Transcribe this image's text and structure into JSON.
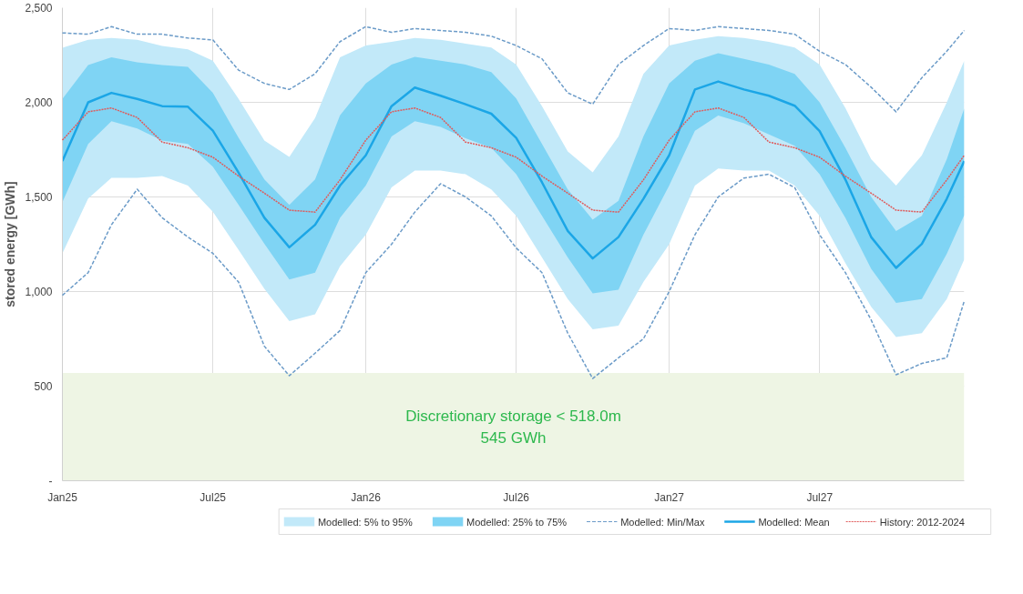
{
  "chart_data": {
    "type": "line",
    "ylabel": "stored energy [GWh]",
    "x": [
      "2025-01-01",
      "2025-02-01",
      "2025-03-01",
      "2025-04-01",
      "2025-05-01",
      "2025-06-01",
      "2025-07-01",
      "2025-08-01",
      "2025-09-01",
      "2025-10-01",
      "2025-11-01",
      "2025-12-01",
      "2026-01-01",
      "2026-02-01",
      "2026-03-01",
      "2026-04-01",
      "2026-05-01",
      "2026-06-01",
      "2026-07-01",
      "2026-08-01",
      "2026-09-01",
      "2026-10-01",
      "2026-11-01",
      "2026-12-01",
      "2027-01-01",
      "2027-02-01",
      "2027-03-01",
      "2027-04-01",
      "2027-05-01",
      "2027-06-01",
      "2027-07-01",
      "2027-08-01",
      "2027-09-01",
      "2027-10-01",
      "2027-11-01",
      "2027-12-01",
      "2027-12-22"
    ],
    "xlim": [
      "2025-01-01",
      "2027-12-22"
    ],
    "xticks": [
      {
        "value": "2025-01-01",
        "label": "Jan25"
      },
      {
        "value": "2025-07-01",
        "label": "Jul25"
      },
      {
        "value": "2026-01-01",
        "label": "Jan26"
      },
      {
        "value": "2026-07-01",
        "label": "Jul26"
      },
      {
        "value": "2027-01-01",
        "label": "Jan27"
      },
      {
        "value": "2027-07-01",
        "label": "Jul27"
      }
    ],
    "ylim": [
      0,
      2500
    ],
    "yticks": [
      {
        "value": 0,
        "label": "-"
      },
      500,
      {
        "value": 1000,
        "label": "1,000"
      },
      {
        "value": 1500,
        "label": "1,500"
      },
      {
        "value": 2000,
        "label": "2,000"
      },
      {
        "value": 2500,
        "label": "2,500"
      }
    ],
    "grid": true,
    "legend": "bottom",
    "bands": [
      {
        "axis": "y",
        "from": 0,
        "to": 570,
        "color": "#eef5e4",
        "label": "Discretionary storage < 518.0m\n545 GWh"
      }
    ],
    "series": [
      {
        "name": "Modelled: 5% to 95%",
        "type": "area",
        "color": "#c2e9f9",
        "values": [
          null,
          null,
          null,
          null,
          null,
          null,
          null,
          null,
          null,
          null,
          null,
          null,
          null,
          null,
          null,
          null,
          null,
          null,
          null,
          null,
          null,
          null,
          null,
          null,
          null,
          null,
          null,
          null,
          null,
          null,
          null,
          null,
          null,
          null,
          null,
          null,
          null
        ],
        "upper": [
          2289,
          2330,
          2340,
          2330,
          2298,
          2280,
          2220,
          2018,
          1798,
          1711,
          1917,
          2238,
          2300,
          2320,
          2340,
          2330,
          2310,
          2290,
          2200,
          1980,
          1740,
          1630,
          1820,
          2150,
          2300,
          2330,
          2350,
          2340,
          2320,
          2290,
          2200,
          1970,
          1700,
          1560,
          1720,
          2000,
          2220
        ],
        "lower": [
          1202,
          1491,
          1601,
          1601,
          1610,
          1560,
          1422,
          1220,
          1014,
          844,
          880,
          1133,
          1300,
          1550,
          1640,
          1640,
          1620,
          1540,
          1400,
          1180,
          960,
          800,
          820,
          1050,
          1250,
          1560,
          1650,
          1640,
          1640,
          1560,
          1400,
          1150,
          920,
          760,
          780,
          960,
          1170
        ]
      },
      {
        "name": "Modelled: 25% to 75%",
        "type": "area",
        "color": "#7fd4f4",
        "values": [
          null,
          null,
          null,
          null,
          null,
          null,
          null,
          null,
          null,
          null,
          null,
          null,
          null,
          null,
          null,
          null,
          null,
          null,
          null,
          null,
          null,
          null,
          null,
          null,
          null,
          null,
          null,
          null,
          null,
          null,
          null,
          null,
          null,
          null,
          null,
          null,
          null
        ],
        "upper": [
          2018,
          2197,
          2238,
          2211,
          2197,
          2188,
          2050,
          1812,
          1592,
          1458,
          1592,
          1931,
          2100,
          2200,
          2240,
          2220,
          2200,
          2160,
          2020,
          1780,
          1540,
          1380,
          1480,
          1820,
          2100,
          2220,
          2260,
          2230,
          2200,
          2150,
          2000,
          1760,
          1500,
          1320,
          1400,
          1700,
          1967
        ],
        "lower": [
          1472,
          1780,
          1900,
          1862,
          1798,
          1780,
          1660,
          1458,
          1252,
          1064,
          1100,
          1390,
          1560,
          1820,
          1900,
          1870,
          1810,
          1760,
          1620,
          1400,
          1180,
          990,
          1010,
          1300,
          1560,
          1850,
          1930,
          1890,
          1830,
          1770,
          1620,
          1390,
          1120,
          940,
          960,
          1200,
          1404
        ]
      },
      {
        "name": "Modelled: Min/Max",
        "line_style": "dashed",
        "color": "#6b9bc8",
        "values": [
          2367,
          2360,
          2400,
          2360,
          2360,
          2340,
          2330,
          2170,
          2100,
          2068,
          2151,
          2321,
          2400,
          2370,
          2390,
          2380,
          2370,
          2350,
          2300,
          2230,
          2050,
          1990,
          2200,
          2300,
          2390,
          2380,
          2400,
          2390,
          2380,
          2360,
          2270,
          2200,
          2080,
          1950,
          2130,
          2270,
          2380
        ]
      },
      {
        "line_style": "dashed",
        "color": "#6b9bc8",
        "values": [
          980,
          1100,
          1353,
          1541,
          1390,
          1288,
          1202,
          1050,
          711,
          555,
          674,
          794,
          1100,
          1250,
          1420,
          1570,
          1500,
          1400,
          1230,
          1100,
          780,
          540,
          650,
          750,
          1000,
          1300,
          1500,
          1600,
          1620,
          1550,
          1300,
          1100,
          850,
          560,
          620,
          650,
          950
        ]
      },
      {
        "name": "Modelled: Mean",
        "line_style": "solid",
        "color": "#1ba6e6",
        "values": [
          1690,
          2000,
          2050,
          2018,
          1980,
          1977,
          1850,
          1628,
          1390,
          1234,
          1353,
          1560,
          1720,
          1980,
          2078,
          2035,
          1990,
          1940,
          1812,
          1577,
          1320,
          1175,
          1288,
          1490,
          1720,
          2068,
          2110,
          2068,
          2035,
          1982,
          1848,
          1592,
          1288,
          1125,
          1252,
          1490,
          1690
        ]
      },
      {
        "name": "History: 2012-2024",
        "line_style": "dotted",
        "color": "#e05a5a",
        "values": [
          1800,
          1950,
          1970,
          1920,
          1790,
          1760,
          1710,
          1610,
          1520,
          1430,
          1420,
          1590,
          1800,
          1950,
          1970,
          1920,
          1790,
          1760,
          1710,
          1610,
          1520,
          1430,
          1420,
          1590,
          1800,
          1950,
          1970,
          1920,
          1790,
          1760,
          1710,
          1610,
          1520,
          1430,
          1420,
          1590,
          1720
        ]
      }
    ]
  }
}
